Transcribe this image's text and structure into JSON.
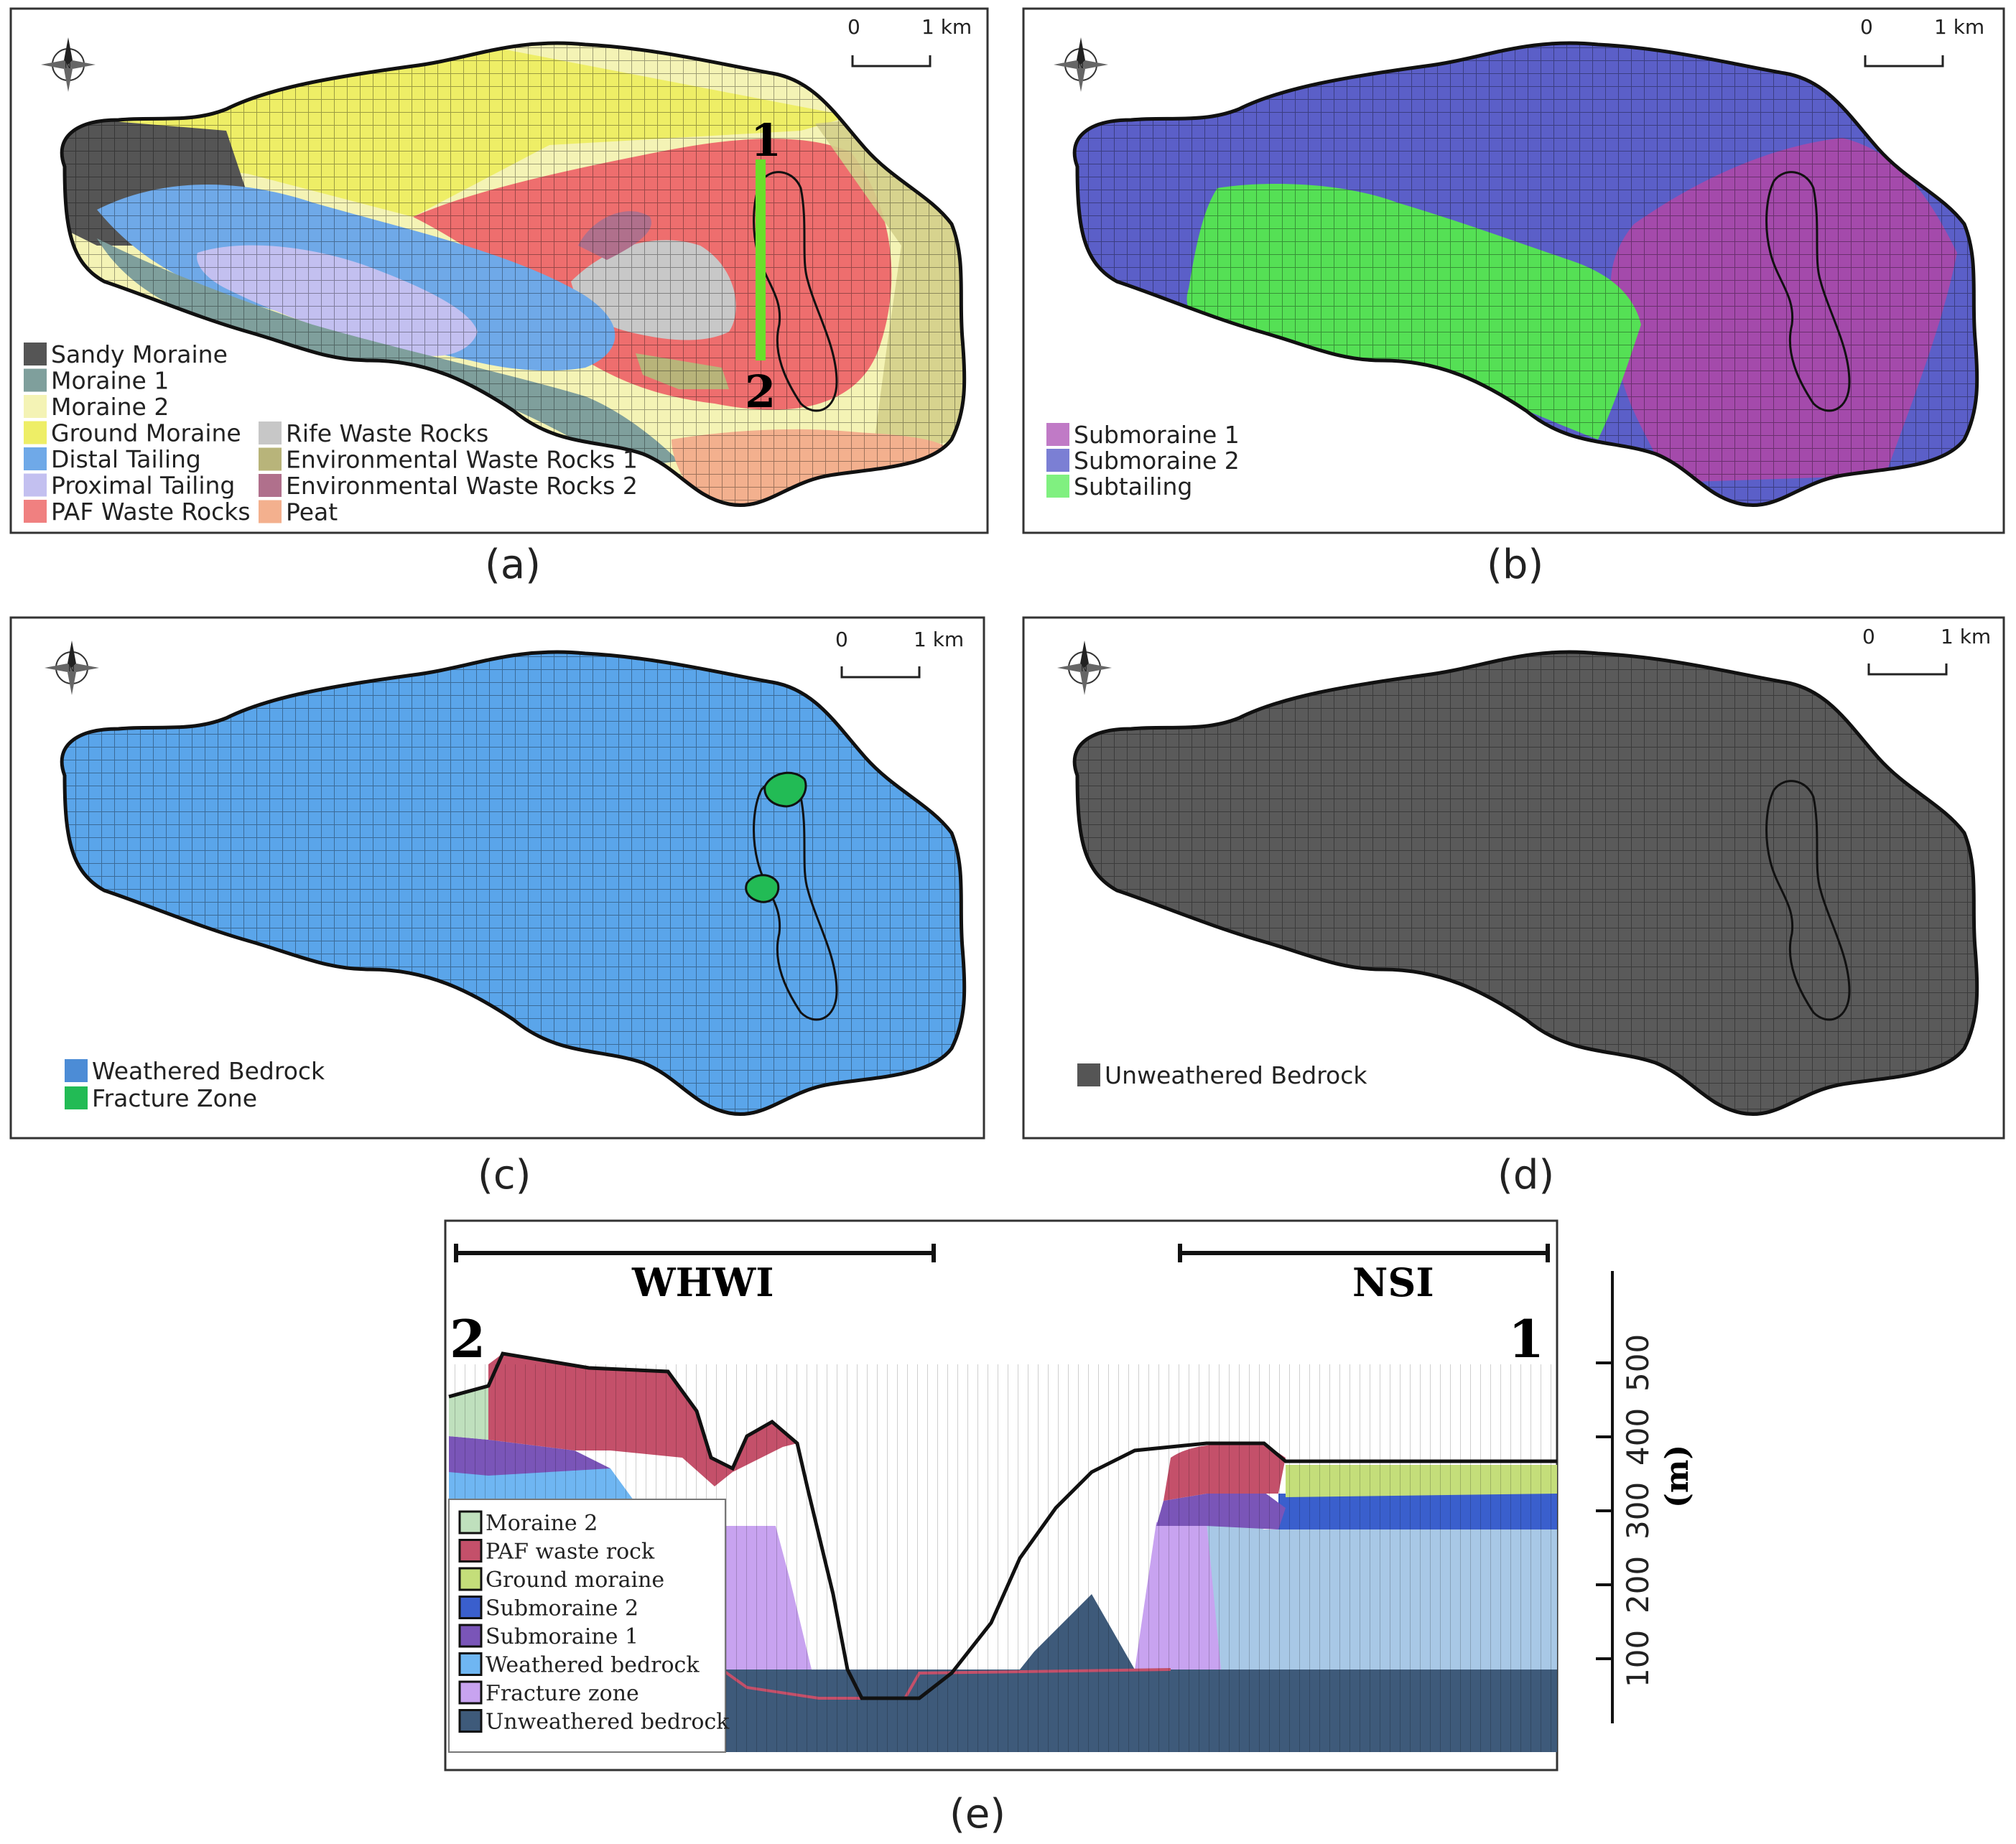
{
  "panels": {
    "a": {
      "caption": "(a)",
      "scale": {
        "zero": "0",
        "one": "1 km"
      },
      "section_marks": {
        "start": "1",
        "end": "2"
      },
      "legend_left": [
        {
          "label": "Sandy Moraine",
          "color": "#555555"
        },
        {
          "label": "Moraine 1",
          "color": "#7f9f9c"
        },
        {
          "label": "Moraine 2",
          "color": "#f4f3b5"
        },
        {
          "label": "Ground Moraine",
          "color": "#eeee66"
        },
        {
          "label": "Distal Tailing",
          "color": "#6fa9e8"
        },
        {
          "label": "Proximal Tailing",
          "color": "#c3c0f0"
        },
        {
          "label": "PAF Waste Rocks",
          "color": "#f08080"
        }
      ],
      "legend_right": [
        {
          "label": "Rife Waste Rocks",
          "color": "#c7c7c7"
        },
        {
          "label": "Environmental Waste Rocks 1",
          "color": "#b8b47a"
        },
        {
          "label": "Environmental Waste Rocks 2",
          "color": "#b0708c"
        },
        {
          "label": "Peat",
          "color": "#f3b08e"
        }
      ]
    },
    "b": {
      "caption": "(b)",
      "scale": {
        "zero": "0",
        "one": "1 km"
      },
      "legend": [
        {
          "label": "Submoraine 1",
          "color": "#c07ac6"
        },
        {
          "label": "Submoraine 2",
          "color": "#7b7fd4"
        },
        {
          "label": "Subtailing",
          "color": "#80f080"
        }
      ]
    },
    "c": {
      "caption": "(c)",
      "scale": {
        "zero": "0",
        "one": "1 km"
      },
      "legend": [
        {
          "label": "Weathered Bedrock",
          "color": "#4c8cd6"
        },
        {
          "label": "Fracture Zone",
          "color": "#22bb55"
        }
      ]
    },
    "d": {
      "caption": "(d)",
      "scale": {
        "zero": "0",
        "one": "1 km"
      },
      "legend": [
        {
          "label": "Unweathered Bedrock",
          "color": "#555555"
        }
      ]
    },
    "e": {
      "caption": "(e)",
      "left_zone": "WHWI",
      "right_zone": "NSI",
      "left_end": "2",
      "right_end": "1",
      "axis_unit": "(m)",
      "axis_ticks": [
        "100",
        "200",
        "300",
        "400",
        "500"
      ],
      "legend": [
        {
          "label": "Moraine 2",
          "color": "#bfe0bd"
        },
        {
          "label": "PAF waste rock",
          "color": "#c4506a"
        },
        {
          "label": "Ground moraine",
          "color": "#c4de7a"
        },
        {
          "label": "Submoraine 2",
          "color": "#3a5fcd"
        },
        {
          "label": "Submoraine 1",
          "color": "#7a55b8"
        },
        {
          "label": "Weathered bedrock",
          "color": "#6fb6f2"
        },
        {
          "label": "Fracture zone",
          "color": "#c8a3f0"
        },
        {
          "label": "Unweathered bedrock",
          "color": "#3e5a7a"
        }
      ]
    }
  }
}
